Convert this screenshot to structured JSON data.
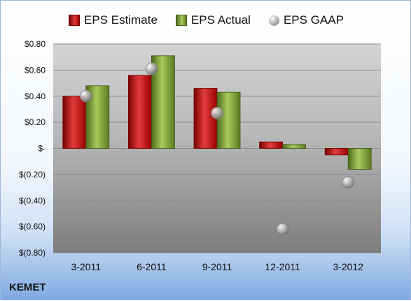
{
  "company": "KEMET",
  "chart_data": {
    "type": "bar",
    "categories": [
      "3-2011",
      "6-2011",
      "9-2011",
      "12-2011",
      "3-2012"
    ],
    "series": [
      {
        "name": "EPS Estimate",
        "values": [
          0.4,
          0.56,
          0.46,
          0.05,
          -0.05
        ],
        "color": "#c00000"
      },
      {
        "name": "EPS Actual",
        "values": [
          0.48,
          0.71,
          0.43,
          0.03,
          -0.16
        ],
        "color": "#76923c"
      },
      {
        "name": "EPS GAAP",
        "marker": "circle",
        "values": [
          0.4,
          0.61,
          0.27,
          -0.62,
          -0.26
        ],
        "color": "#9a9a9a"
      }
    ],
    "ylim": [
      -0.8,
      0.8
    ],
    "yticks": [
      {
        "value": 0.8,
        "label": "$0.80"
      },
      {
        "value": 0.6,
        "label": "$0.60"
      },
      {
        "value": 0.4,
        "label": "$0.40"
      },
      {
        "value": 0.2,
        "label": "$0.20"
      },
      {
        "value": 0.0,
        "label": "$-"
      },
      {
        "value": -0.2,
        "label": "$(0.20)"
      },
      {
        "value": -0.4,
        "label": "$(0.40)"
      },
      {
        "value": -0.6,
        "label": "$(0.60)"
      },
      {
        "value": -0.8,
        "label": "$(0.80)"
      }
    ],
    "grid": true,
    "legend_position": "top"
  }
}
